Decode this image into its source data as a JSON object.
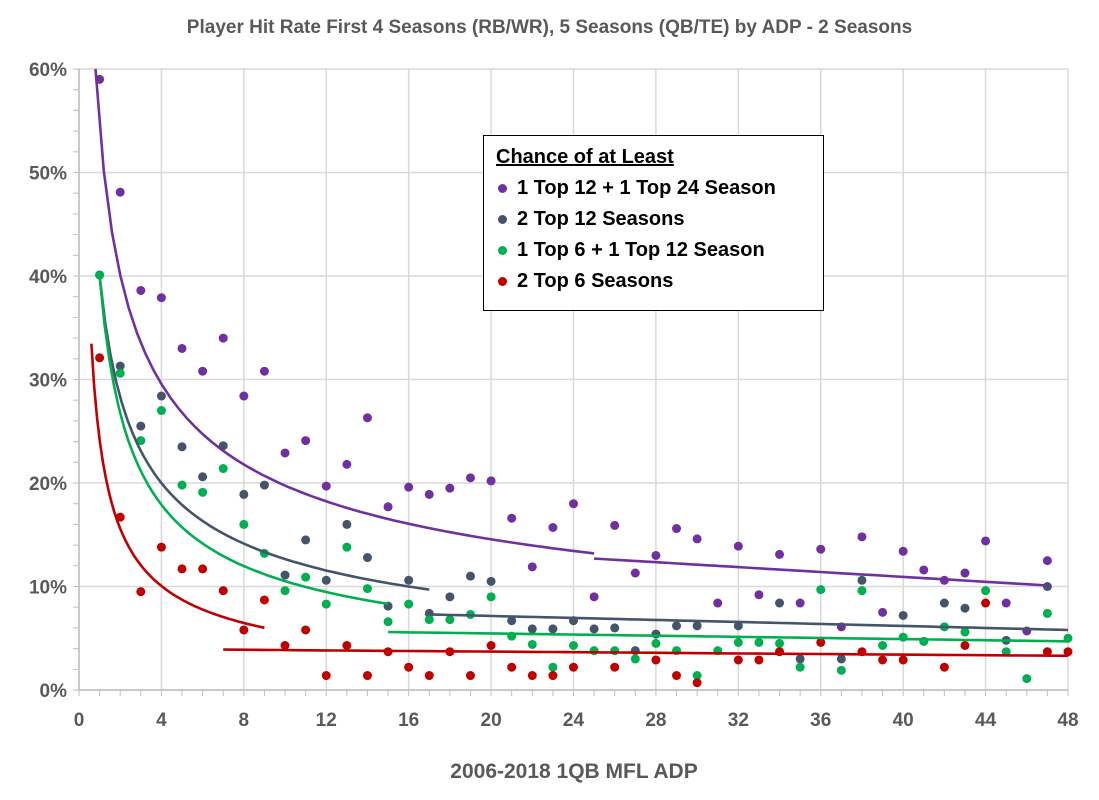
{
  "chart_data": {
    "type": "scatter",
    "title": "Player Hit Rate First 4 Seasons (RB/WR), 5 Seasons (QB/TE) by ADP - 2 Seasons",
    "xlabel": "2006-2018 1QB MFL ADP",
    "ylabel": "",
    "xlim": [
      0,
      48
    ],
    "ylim": [
      0,
      60
    ],
    "x_ticks": [
      "0",
      "4",
      "8",
      "12",
      "16",
      "20",
      "24",
      "28",
      "32",
      "36",
      "40",
      "44",
      "48"
    ],
    "y_ticks": [
      "0%",
      "10%",
      "20%",
      "30%",
      "40%",
      "50%",
      "60%"
    ],
    "grid": true,
    "legend_title": "Chance of at Least",
    "legend_position": "top-center",
    "series": [
      {
        "name": "1 Top 12 + 1 Top 24 Season",
        "color": "#7030A0",
        "x": [
          1,
          2,
          3,
          4,
          5,
          6,
          7,
          8,
          9,
          10,
          11,
          12,
          13,
          14,
          15,
          16,
          17,
          18,
          19,
          20,
          21,
          22,
          23,
          24,
          25,
          26,
          27,
          28,
          29,
          30,
          31,
          32,
          33,
          34,
          35,
          36,
          37,
          38,
          39,
          40,
          41,
          42,
          43,
          44,
          45,
          46,
          47
        ],
        "y": [
          59.0,
          48.1,
          38.6,
          37.9,
          33.0,
          30.8,
          34.0,
          28.4,
          30.8,
          22.9,
          24.1,
          19.7,
          21.8,
          26.3,
          17.7,
          19.6,
          18.9,
          19.5,
          20.5,
          20.2,
          16.6,
          11.9,
          15.7,
          18.0,
          9.0,
          15.9,
          11.3,
          13.0,
          15.6,
          14.6,
          8.4,
          13.9,
          9.2,
          13.1,
          8.4,
          13.6,
          6.1,
          14.8,
          7.5,
          13.4,
          11.6,
          10.6,
          11.3,
          14.4,
          8.4,
          5.7,
          12.5
        ],
        "trendlines": [
          {
            "type": "power",
            "a": 54.4,
            "b": -0.44,
            "x_range": [
              0.8,
              25
            ]
          },
          {
            "type": "linear",
            "y_start": 12.7,
            "y_end": 10.1,
            "x_range": [
              25,
              47
            ]
          }
        ]
      },
      {
        "name": "2 Top 12 Seasons",
        "color": "#44546A",
        "x": [
          1,
          2,
          3,
          4,
          5,
          6,
          7,
          8,
          9,
          10,
          11,
          12,
          13,
          14,
          15,
          16,
          17,
          18,
          19,
          20,
          21,
          22,
          23,
          24,
          25,
          26,
          27,
          28,
          29,
          30,
          32,
          34,
          35,
          37,
          38,
          40,
          41,
          42,
          43,
          45,
          47
        ],
        "y": [
          40.1,
          31.3,
          25.5,
          28.4,
          23.5,
          20.6,
          23.6,
          18.9,
          19.8,
          11.1,
          14.5,
          10.6,
          16.0,
          12.8,
          8.1,
          10.6,
          7.4,
          9.0,
          11.0,
          10.5,
          6.7,
          5.9,
          5.9,
          6.7,
          5.9,
          6.0,
          3.8,
          5.4,
          6.2,
          6.2,
          6.2,
          8.4,
          3.0,
          3.0,
          10.6,
          7.2,
          4.7,
          8.4,
          7.9,
          4.8,
          10.0
        ],
        "trendlines": [
          {
            "type": "power",
            "a": 40,
            "b": -0.5,
            "x_range": [
              1,
              17
            ]
          },
          {
            "type": "linear",
            "y_start": 7.3,
            "y_end": 5.8,
            "x_range": [
              17,
              48
            ]
          }
        ]
      },
      {
        "name": "1 Top 6 + 1 Top 12 Season",
        "color": "#00B050",
        "x": [
          1,
          2,
          3,
          4,
          5,
          6,
          7,
          8,
          9,
          10,
          11,
          12,
          13,
          14,
          15,
          16,
          17,
          18,
          19,
          20,
          21,
          22,
          23,
          24,
          25,
          26,
          27,
          28,
          29,
          30,
          31,
          32,
          33,
          34,
          35,
          36,
          37,
          38,
          39,
          40,
          41,
          42,
          43,
          44,
          45,
          46,
          47,
          48
        ],
        "y": [
          40.1,
          30.6,
          24.1,
          27.0,
          19.8,
          19.1,
          21.4,
          16.0,
          13.2,
          9.6,
          10.9,
          8.3,
          13.8,
          9.8,
          6.6,
          8.3,
          6.8,
          6.8,
          7.3,
          9.0,
          5.2,
          4.4,
          2.2,
          4.3,
          3.8,
          3.8,
          3.0,
          4.5,
          3.8,
          1.4,
          3.8,
          4.6,
          4.6,
          4.5,
          2.2,
          9.7,
          1.9,
          9.6,
          4.3,
          5.1,
          4.7,
          6.1,
          5.6,
          9.6,
          3.7,
          1.1,
          7.4,
          5.0
        ],
        "trendlines": [
          {
            "type": "power",
            "a": 40,
            "b": -0.58,
            "x_range": [
              1,
              15
            ]
          },
          {
            "type": "linear",
            "y_start": 5.6,
            "y_end": 4.7,
            "x_range": [
              15,
              48
            ]
          }
        ]
      },
      {
        "name": "2 Top 6 Seasons",
        "color": "#C00000",
        "x": [
          1,
          2,
          3,
          4,
          5,
          6,
          7,
          8,
          9,
          10,
          11,
          12,
          13,
          14,
          15,
          16,
          17,
          18,
          19,
          20,
          21,
          22,
          23,
          24,
          26,
          28,
          29,
          30,
          32,
          33,
          34,
          36,
          38,
          39,
          40,
          42,
          43,
          44,
          47,
          48
        ],
        "y": [
          32.1,
          16.7,
          9.5,
          13.8,
          11.7,
          11.7,
          9.6,
          5.8,
          8.7,
          4.3,
          5.8,
          1.4,
          4.3,
          1.4,
          3.7,
          2.2,
          1.4,
          3.7,
          1.4,
          4.3,
          2.2,
          1.4,
          1.4,
          2.2,
          2.2,
          2.9,
          1.4,
          0.7,
          2.9,
          2.9,
          3.7,
          4.6,
          3.7,
          2.9,
          2.9,
          2.2,
          4.3,
          8.4,
          3.7,
          3.7
        ],
        "trendlines": [
          {
            "type": "power",
            "a": 24.2,
            "b": -0.634,
            "x_range": [
              0.6,
              9
            ]
          },
          {
            "type": "linear",
            "y_start": 3.9,
            "y_end": 3.3,
            "x_range": [
              7,
              48
            ]
          }
        ]
      }
    ]
  }
}
